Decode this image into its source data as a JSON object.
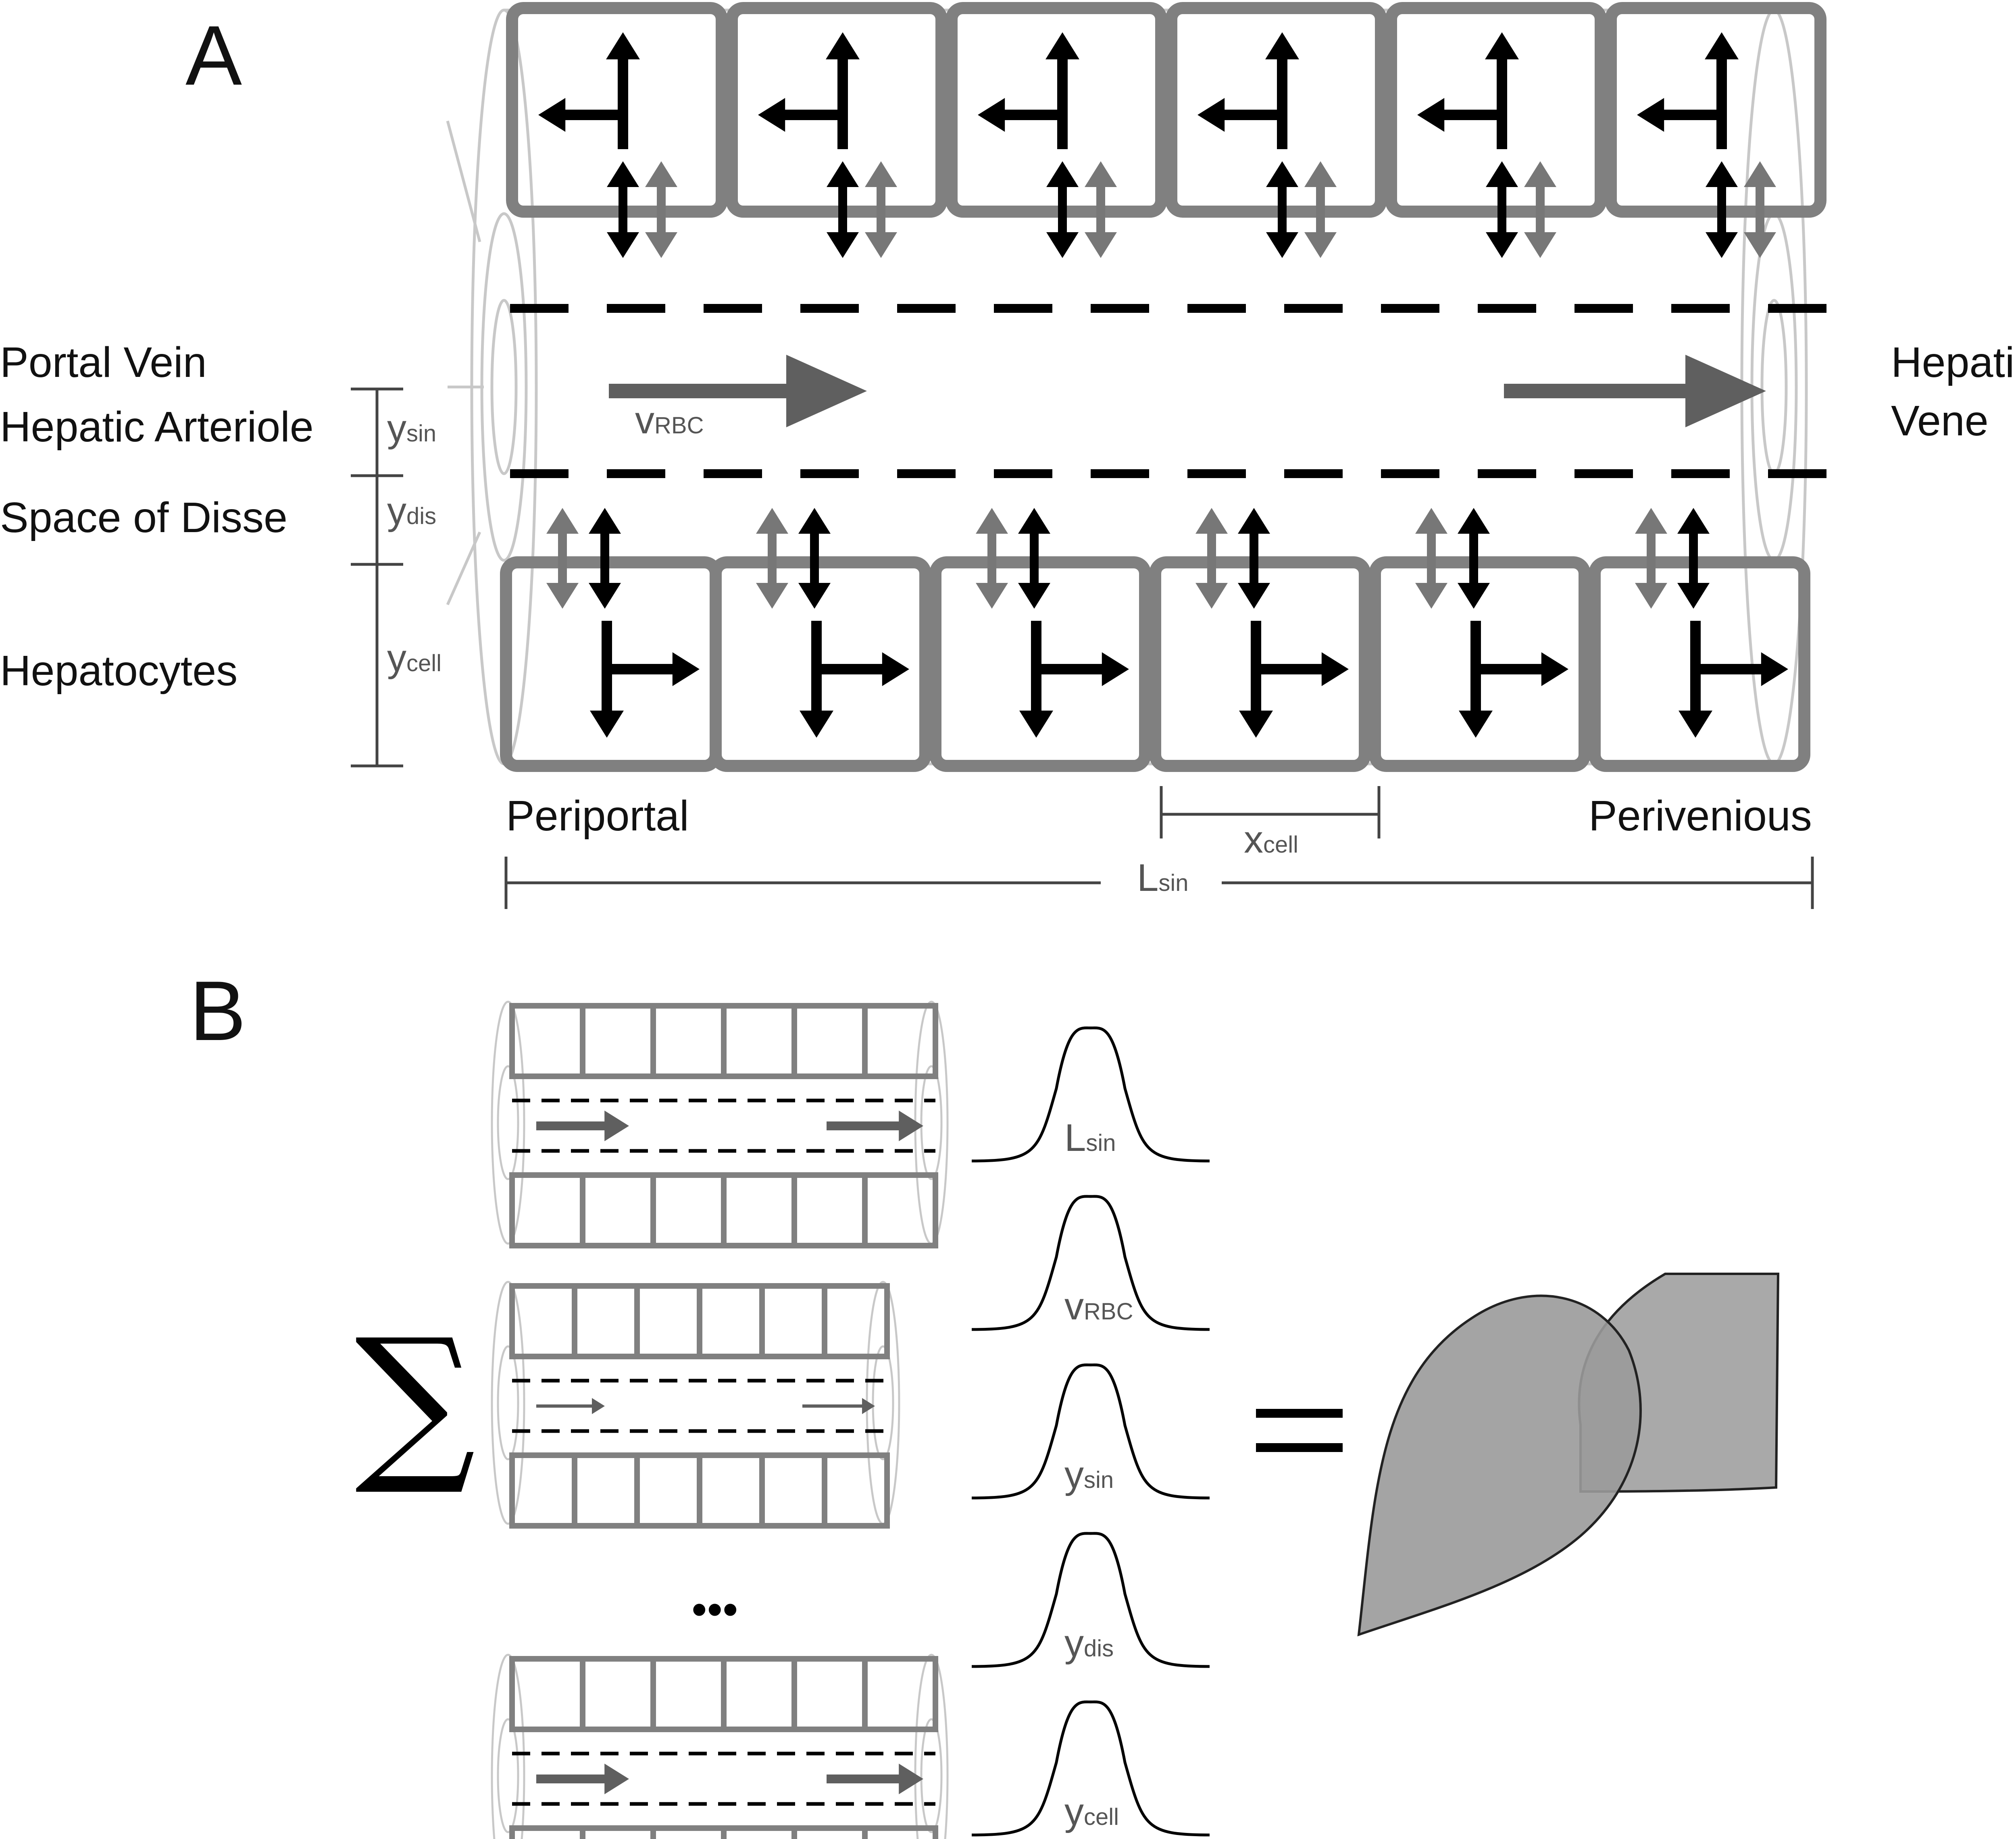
{
  "panels": {
    "a": "A",
    "b": "B"
  },
  "panel_a": {
    "left_labels": {
      "portal_vein": "Portal Vein",
      "hepatic_arteriole": "Hepatic Arteriole",
      "space_of_disse": "Space of Disse",
      "hepatocytes": "Hepatocytes"
    },
    "right_label": {
      "line1": "Hepatic",
      "line2": "Vene"
    },
    "dim_y_sin": {
      "base": "y",
      "sub": "sin"
    },
    "dim_y_dis": {
      "base": "y",
      "sub": "dis"
    },
    "dim_y_cell": {
      "base": "y",
      "sub": "cell"
    },
    "velocity": {
      "base": "v",
      "sub": "RBC"
    },
    "periportal": "Periportal",
    "perivenious": "Perivenious",
    "x_cell": {
      "base": "x",
      "sub": "cell"
    },
    "l_sin": {
      "base": "L",
      "sub": "sin"
    }
  },
  "panel_b": {
    "sum_symbol": "∑",
    "ellipsis": "•••",
    "equals": "=",
    "distributions": [
      {
        "base": "L",
        "sub": "sin"
      },
      {
        "base": "v",
        "sub": "RBC"
      },
      {
        "base": "y",
        "sub": "sin"
      },
      {
        "base": "y",
        "sub": "dis"
      },
      {
        "base": "y",
        "sub": "cell"
      }
    ]
  },
  "colors": {
    "cell_stroke": "#808080",
    "tube_stroke": "#c8c8c8",
    "flow_arrow": "#5f5f5f",
    "grey_arrow": "#777777",
    "liver_fill": "#a0a0a0",
    "black": "#000000"
  }
}
